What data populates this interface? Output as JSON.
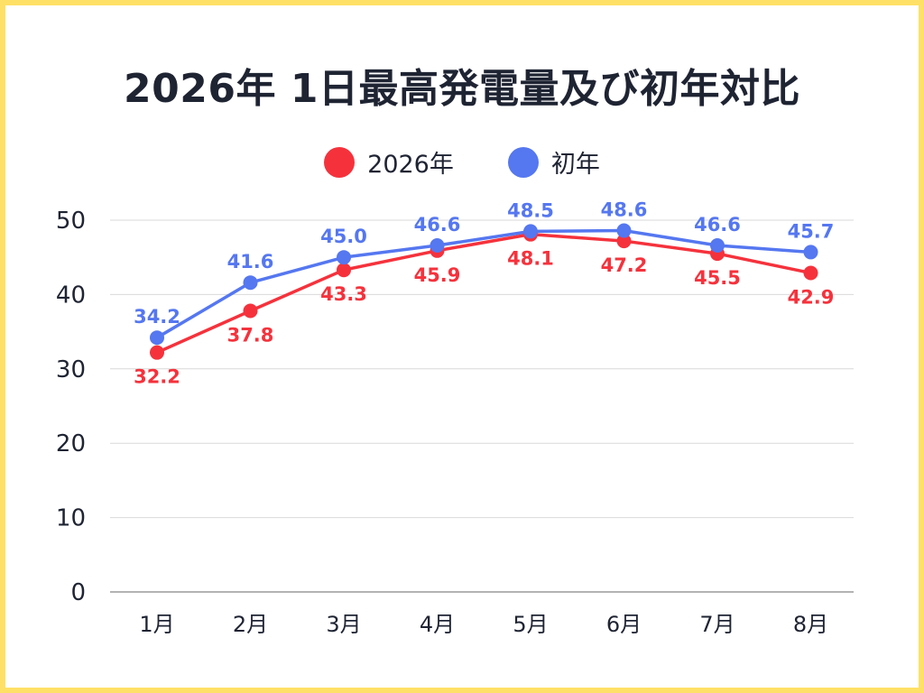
{
  "chart_data": {
    "type": "line",
    "title": "2026年 1日最高発電量及び初年対比",
    "categories": [
      "1月",
      "2月",
      "3月",
      "4月",
      "5月",
      "6月",
      "7月",
      "8月"
    ],
    "series": [
      {
        "name": "2026年",
        "color": "#f5323c",
        "values": [
          32.2,
          37.8,
          43.3,
          45.9,
          48.1,
          47.2,
          45.5,
          42.9
        ],
        "label_position": "below"
      },
      {
        "name": "初年",
        "color": "#5577f0",
        "values": [
          34.2,
          41.6,
          45.0,
          46.6,
          48.5,
          48.6,
          46.6,
          45.7
        ],
        "label_position": "above"
      }
    ],
    "ylim": [
      0,
      50
    ],
    "yticks": [
      0,
      10,
      20,
      30,
      40,
      50
    ],
    "xlabel": "",
    "ylabel": "",
    "grid": true,
    "legend": "top-center",
    "border_color": "#ffe066"
  }
}
